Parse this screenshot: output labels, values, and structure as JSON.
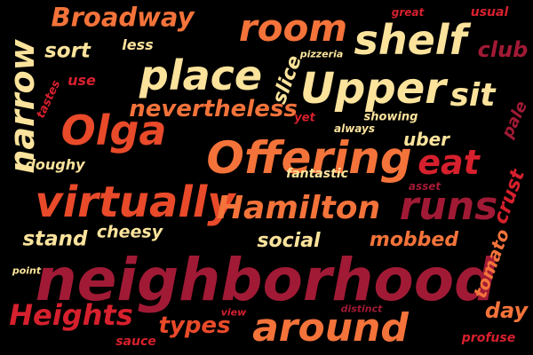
{
  "palette": {
    "background": "#000000",
    "cream": "#FBE39C",
    "orange": "#F4733A",
    "red_orange": "#E94A2A",
    "red": "#D6202D",
    "maroon": "#A11A35",
    "dark_maroon": "#8E1531"
  },
  "words": [
    {
      "text": "neighborhood",
      "color": "#A11A35"
    },
    {
      "text": "Offering",
      "color": "#F4733A"
    },
    {
      "text": "virtually",
      "color": "#E94A2A"
    },
    {
      "text": "Upper",
      "color": "#FBE39C"
    },
    {
      "text": "room",
      "color": "#F4733A"
    },
    {
      "text": "place",
      "color": "#FBE39C"
    },
    {
      "text": "shelf",
      "color": "#FBE39C"
    },
    {
      "text": "Olga",
      "color": "#E94A2A"
    },
    {
      "text": "around",
      "color": "#F4733A"
    },
    {
      "text": "runs",
      "color": "#A11A35"
    },
    {
      "text": "eat",
      "color": "#D6202D"
    },
    {
      "text": "sit",
      "color": "#FBE39C"
    },
    {
      "text": "narrow",
      "color": "#FBE39C"
    },
    {
      "text": "Hamilton",
      "color": "#F4733A"
    },
    {
      "text": "Heights",
      "color": "#D6202D"
    },
    {
      "text": "Broadway",
      "color": "#F4733A"
    },
    {
      "text": "nevertheless",
      "color": "#F4733A"
    },
    {
      "text": "stand",
      "color": "#FBE39C"
    },
    {
      "text": "social",
      "color": "#FBE39C"
    },
    {
      "text": "mobbed",
      "color": "#F4733A"
    },
    {
      "text": "types",
      "color": "#E94A2A"
    },
    {
      "text": "sort",
      "color": "#FBE39C"
    },
    {
      "text": "cheesy",
      "color": "#FBE39C"
    },
    {
      "text": "uber",
      "color": "#FBE39C"
    },
    {
      "text": "club",
      "color": "#A11A35"
    },
    {
      "text": "day",
      "color": "#F4733A"
    },
    {
      "text": "crust",
      "color": "#D6202D"
    },
    {
      "text": "slice",
      "color": "#FBE39C"
    },
    {
      "text": "tomato",
      "color": "#F4733A"
    },
    {
      "text": "doughy",
      "color": "#FBE39C"
    },
    {
      "text": "use",
      "color": "#D6202D"
    },
    {
      "text": "less",
      "color": "#FBE39C"
    },
    {
      "text": "pale",
      "color": "#A11A35"
    },
    {
      "text": "fantastic",
      "color": "#FBE39C"
    },
    {
      "text": "always",
      "color": "#FBE39C"
    },
    {
      "text": "showing",
      "color": "#FBE39C"
    },
    {
      "text": "tastes",
      "color": "#D6202D"
    },
    {
      "text": "pizzeria",
      "color": "#FBE39C"
    },
    {
      "text": "usual",
      "color": "#D6202D"
    },
    {
      "text": "great",
      "color": "#D6202D"
    },
    {
      "text": "yet",
      "color": "#D6202D"
    },
    {
      "text": "asset",
      "color": "#A11A35"
    },
    {
      "text": "point",
      "color": "#FBE39C"
    },
    {
      "text": "view",
      "color": "#D6202D"
    },
    {
      "text": "distinct",
      "color": "#A11A35"
    },
    {
      "text": "sauce",
      "color": "#D6202D"
    },
    {
      "text": "profuse",
      "color": "#D6202D"
    }
  ]
}
